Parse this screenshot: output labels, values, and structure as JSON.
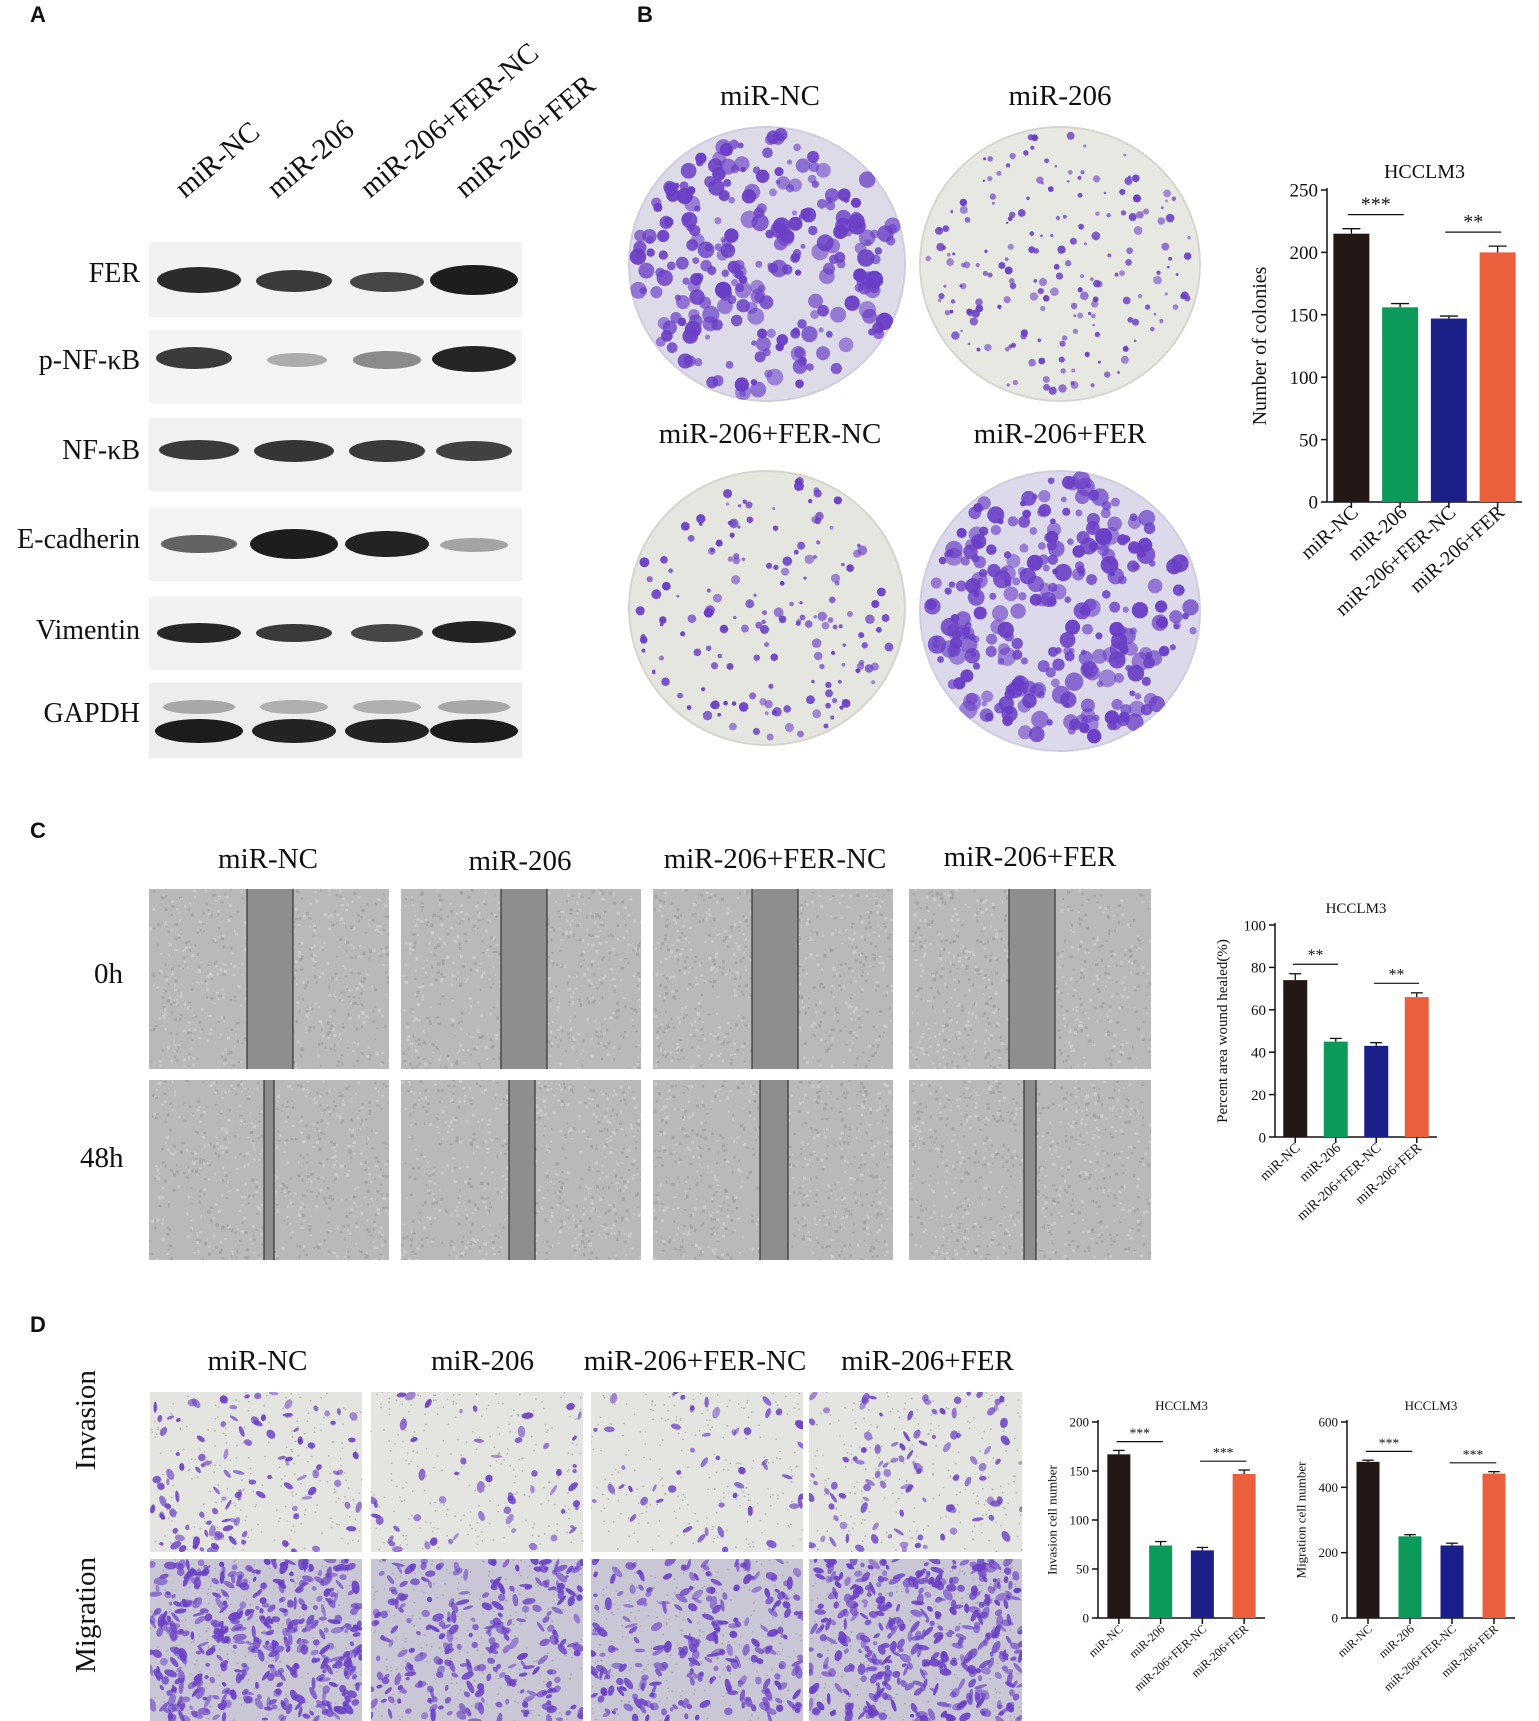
{
  "panels": {
    "A": {
      "letter": "A",
      "lanes": [
        "miR-NC",
        "miR-206",
        "miR-206+FER-NC",
        "miR-206+FER"
      ],
      "blots": [
        "FER",
        "p-NF-κB",
        "NF-κB",
        "E-cadherin",
        "Vimentin",
        "GAPDH"
      ]
    },
    "B": {
      "letter": "B",
      "plates": [
        "miR-NC",
        "miR-206",
        "miR-206+FER-NC",
        "miR-206+FER"
      ]
    },
    "C": {
      "letter": "C",
      "columns": [
        "miR-NC",
        "miR-206",
        "miR-206+FER-NC",
        "miR-206+FER"
      ],
      "rows": [
        "0h",
        "48h"
      ]
    },
    "D": {
      "letter": "D",
      "columns": [
        "miR-NC",
        "miR-206",
        "miR-206+FER-NC",
        "miR-206+FER"
      ],
      "rows": [
        "Invasion",
        "Migration"
      ]
    }
  },
  "colors": {
    "bar_colors": [
      "#231815",
      "#0b9a5a",
      "#1b1f8a",
      "#ea603c"
    ],
    "stain": "#6a3fc6"
  },
  "chart_data": [
    {
      "type": "bar",
      "panel": "B",
      "title": "HCCLM3",
      "ylabel": "Number of colonies",
      "categories": [
        "miR-NC",
        "miR-206",
        "miR-206+FER-NC",
        "miR-206+FER"
      ],
      "values": [
        215,
        156,
        147,
        200
      ],
      "errors": [
        4,
        3,
        2,
        5
      ],
      "ylim": [
        0,
        250
      ],
      "yticks": [
        "0",
        "50",
        "100",
        "150",
        "200",
        "250"
      ],
      "significance": [
        {
          "from": 0,
          "to": 1,
          "label": "***"
        },
        {
          "from": 2,
          "to": 3,
          "label": "**"
        }
      ]
    },
    {
      "type": "bar",
      "panel": "C",
      "title": "HCCLM3",
      "ylabel": "Percent area wound healed(%)",
      "categories": [
        "miR-NC",
        "miR-206",
        "miR-206+FER-NC",
        "miR-206+FER"
      ],
      "values": [
        74,
        45,
        43,
        66
      ],
      "errors": [
        3,
        1.5,
        1.5,
        2
      ],
      "ylim": [
        0,
        100
      ],
      "yticks": [
        "0",
        "20",
        "40",
        "60",
        "80",
        "100"
      ],
      "significance": [
        {
          "from": 0,
          "to": 1,
          "label": "**"
        },
        {
          "from": 2,
          "to": 3,
          "label": "**"
        }
      ]
    },
    {
      "type": "bar",
      "panel": "D",
      "title": "HCCLM3",
      "ylabel": "Invasion cell number",
      "categories": [
        "miR-NC",
        "miR-206",
        "miR-206+FER-NC",
        "miR-206+FER"
      ],
      "values": [
        167,
        74,
        69,
        147
      ],
      "errors": [
        4,
        4,
        3,
        4
      ],
      "ylim": [
        0,
        200
      ],
      "yticks": [
        "0",
        "50",
        "100",
        "150",
        "200"
      ],
      "significance": [
        {
          "from": 0,
          "to": 1,
          "label": "***"
        },
        {
          "from": 2,
          "to": 3,
          "label": "***"
        }
      ]
    },
    {
      "type": "bar",
      "panel": "D",
      "title": "HCCLM3",
      "ylabel": "Migration cell number",
      "categories": [
        "miR-NC",
        "miR-206",
        "miR-206+FER-NC",
        "miR-206+FER"
      ],
      "values": [
        478,
        250,
        222,
        442
      ],
      "errors": [
        5,
        5,
        7,
        6
      ],
      "ylim": [
        0,
        600
      ],
      "yticks": [
        "0",
        "200",
        "400",
        "600"
      ],
      "significance": [
        {
          "from": 0,
          "to": 1,
          "label": "***"
        },
        {
          "from": 2,
          "to": 3,
          "label": "***"
        }
      ]
    }
  ]
}
